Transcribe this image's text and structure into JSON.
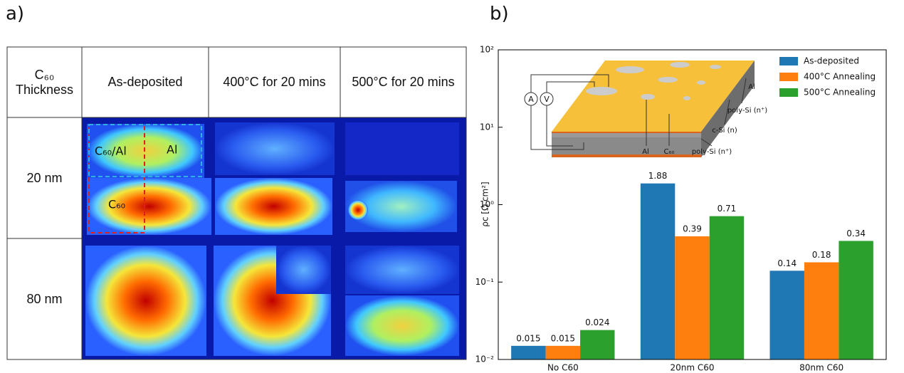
{
  "panel_a": {
    "label": "a)",
    "table": {
      "header": [
        "C₆₀ Thickness",
        "As-deposited",
        "400°C for 20 mins",
        "500°C for 20 mins"
      ],
      "rows": [
        "20 nm",
        "80 nm"
      ]
    },
    "annotations": [
      "C₆₀/Al",
      "Al",
      "C₆₀"
    ]
  },
  "panel_b": {
    "label": "b)",
    "inset": {
      "labels": [
        "A",
        "V",
        "Al",
        "C₆₀",
        "poly-Si (n⁺)",
        "c-Si (n)",
        "poly-Si (n⁺)",
        "Al"
      ]
    }
  },
  "chart_data": {
    "type": "bar",
    "ylabel": "ρc [Ω cm²]",
    "categories": [
      "No C60",
      "20nm C60",
      "80nm C60"
    ],
    "series": [
      {
        "name": "As-deposited",
        "color": "#1f77b4",
        "values": [
          0.015,
          1.88,
          0.14
        ]
      },
      {
        "name": "400°C Annealing",
        "color": "#ff7f0e",
        "values": [
          0.015,
          0.39,
          0.18
        ]
      },
      {
        "name": "500°C Annealing",
        "color": "#2ca02c",
        "values": [
          0.024,
          0.71,
          0.34
        ]
      }
    ],
    "log_scale": true,
    "ylim": [
      0.01,
      100
    ],
    "yticks": [
      {
        "value": 0.01,
        "label": "10⁻²"
      },
      {
        "value": 0.1,
        "label": "10⁻¹"
      },
      {
        "value": 1,
        "label": "10⁰"
      },
      {
        "value": 10,
        "label": "10¹"
      },
      {
        "value": 100,
        "label": "10²"
      }
    ],
    "grid": false,
    "legend": "upper right"
  }
}
